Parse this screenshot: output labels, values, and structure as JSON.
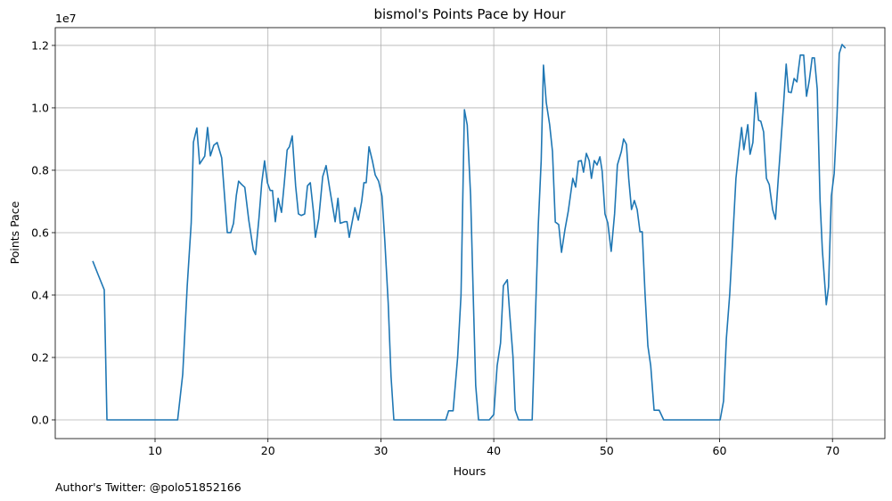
{
  "chart_data": {
    "type": "line",
    "title": "bismol's Points Pace by Hour",
    "xlabel": "Hours",
    "ylabel": "Points Pace",
    "y_offset_label": "1e7",
    "footnote": "Author's Twitter: @polo51852166",
    "grid": true,
    "xlim": [
      1.16,
      74.64
    ],
    "ylim": [
      -0.06,
      1.257
    ],
    "xticks": [
      10,
      20,
      30,
      40,
      50,
      60,
      70
    ],
    "yticks": [
      {
        "value": 0,
        "label": "0.0"
      },
      {
        "value": 0.2,
        "label": "0.2"
      },
      {
        "value": 0.4,
        "label": "0.4"
      },
      {
        "value": 0.6,
        "label": "0.6"
      },
      {
        "value": 0.8,
        "label": "0.8"
      },
      {
        "value": 1.0,
        "label": "1.0"
      },
      {
        "value": 1.2,
        "label": "1.2"
      }
    ],
    "x": [
      4.48,
      4.95,
      5.5,
      5.74,
      12.0,
      12.45,
      12.85,
      13.2,
      13.4,
      13.7,
      13.95,
      14.4,
      14.65,
      14.9,
      15.2,
      15.5,
      15.9,
      16.4,
      16.7,
      16.95,
      17.2,
      17.4,
      17.65,
      17.95,
      18.3,
      18.7,
      18.9,
      19.2,
      19.45,
      19.7,
      19.95,
      20.2,
      20.4,
      20.65,
      20.9,
      21.2,
      21.45,
      21.7,
      21.9,
      22.15,
      22.45,
      22.7,
      22.95,
      23.25,
      23.5,
      23.75,
      24.05,
      24.2,
      24.5,
      24.85,
      25.15,
      25.45,
      25.95,
      26.2,
      26.4,
      26.8,
      27.0,
      27.2,
      27.7,
      28.0,
      28.3,
      28.5,
      28.7,
      28.95,
      29.25,
      29.5,
      29.8,
      30.1,
      30.35,
      30.65,
      30.9,
      31.15,
      35.75,
      36.0,
      36.4,
      36.8,
      37.1,
      37.4,
      37.65,
      37.95,
      38.2,
      38.4,
      38.65,
      39.6,
      40.0,
      40.3,
      40.6,
      40.85,
      41.2,
      41.4,
      41.7,
      41.9,
      42.2,
      43.4,
      43.6,
      43.95,
      44.2,
      44.4,
      44.65,
      44.95,
      45.2,
      45.45,
      45.75,
      46.0,
      46.3,
      46.6,
      47.0,
      47.25,
      47.5,
      47.75,
      47.95,
      48.2,
      48.45,
      48.65,
      48.9,
      49.15,
      49.4,
      49.6,
      49.85,
      50.1,
      50.4,
      50.7,
      50.95,
      51.3,
      51.5,
      51.75,
      51.95,
      52.2,
      52.45,
      52.7,
      52.95,
      53.15,
      53.4,
      53.65,
      53.9,
      54.2,
      54.65,
      55.05,
      60.05,
      60.35,
      60.6,
      60.9,
      61.2,
      61.45,
      61.7,
      61.95,
      62.15,
      62.5,
      62.7,
      62.95,
      63.2,
      63.45,
      63.65,
      63.9,
      64.15,
      64.4,
      64.7,
      64.95,
      65.2,
      65.4,
      65.65,
      65.9,
      66.1,
      66.35,
      66.6,
      66.85,
      67.15,
      67.45,
      67.7,
      67.95,
      68.2,
      68.4,
      68.65,
      68.9,
      69.1,
      69.45,
      69.65,
      69.9,
      70.15,
      70.4,
      70.6,
      70.85,
      71.15
    ],
    "series": [
      {
        "name": "Points Pace",
        "color": "#1f77b4",
        "values": [
          0.509,
          0.466,
          0.417,
          0,
          0,
          0.146,
          0.43,
          0.63,
          0.89,
          0.935,
          0.82,
          0.845,
          0.937,
          0.846,
          0.88,
          0.889,
          0.84,
          0.6,
          0.6,
          0.63,
          0.72,
          0.765,
          0.755,
          0.745,
          0.64,
          0.545,
          0.53,
          0.645,
          0.76,
          0.83,
          0.76,
          0.735,
          0.735,
          0.635,
          0.71,
          0.665,
          0.76,
          0.865,
          0.875,
          0.91,
          0.75,
          0.66,
          0.655,
          0.66,
          0.75,
          0.76,
          0.66,
          0.585,
          0.645,
          0.78,
          0.815,
          0.745,
          0.635,
          0.71,
          0.63,
          0.635,
          0.635,
          0.585,
          0.68,
          0.64,
          0.7,
          0.76,
          0.76,
          0.875,
          0.83,
          0.785,
          0.765,
          0.717,
          0.574,
          0.374,
          0.14,
          0,
          0,
          0.029,
          0.029,
          0.2,
          0.4,
          0.994,
          0.945,
          0.717,
          0.374,
          0.11,
          0,
          0,
          0.017,
          0.174,
          0.246,
          0.43,
          0.449,
          0.346,
          0.203,
          0.031,
          0,
          0,
          0.23,
          0.63,
          0.83,
          1.137,
          1.017,
          0.946,
          0.86,
          0.634,
          0.626,
          0.537,
          0.609,
          0.669,
          0.774,
          0.746,
          0.829,
          0.831,
          0.794,
          0.854,
          0.831,
          0.774,
          0.831,
          0.817,
          0.843,
          0.797,
          0.66,
          0.631,
          0.54,
          0.66,
          0.817,
          0.86,
          0.9,
          0.883,
          0.774,
          0.674,
          0.703,
          0.674,
          0.603,
          0.603,
          0.403,
          0.237,
          0.174,
          0.031,
          0.031,
          0,
          0,
          0.06,
          0.26,
          0.403,
          0.603,
          0.774,
          0.86,
          0.937,
          0.866,
          0.946,
          0.851,
          0.889,
          1.049,
          0.96,
          0.957,
          0.923,
          0.774,
          0.754,
          0.674,
          0.643,
          0.774,
          0.874,
          1.003,
          1.14,
          1.051,
          1.049,
          1.094,
          1.083,
          1.169,
          1.169,
          1.037,
          1.089,
          1.16,
          1.16,
          1.06,
          0.703,
          0.546,
          0.369,
          0.426,
          0.717,
          0.789,
          0.974,
          1.174,
          1.203,
          1.191
        ]
      }
    ]
  }
}
